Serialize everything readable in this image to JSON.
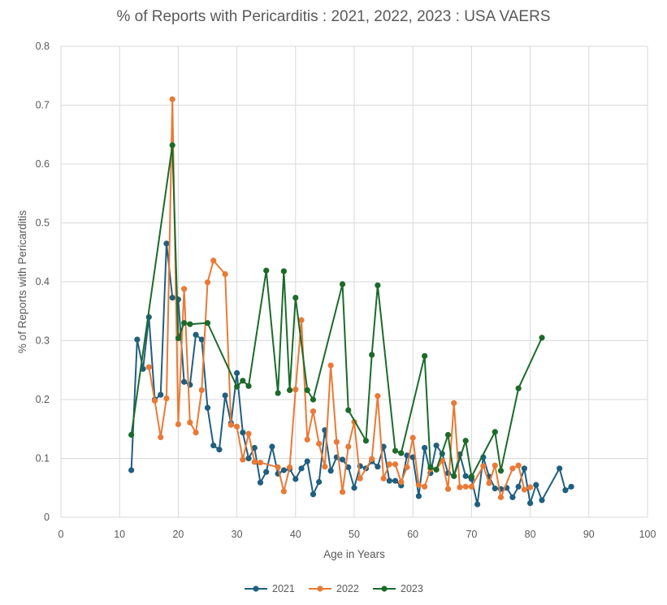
{
  "chart_data": {
    "type": "line",
    "title": "% of Reports with Pericarditis : 2021, 2022, 2023 : USA VAERS",
    "xlabel": "Age in Years",
    "ylabel": "% of Reports with Pericarditis",
    "xlim": [
      0,
      100
    ],
    "ylim": [
      0,
      0.8
    ],
    "x_ticks": [
      "0",
      "10",
      "20",
      "30",
      "40",
      "50",
      "60",
      "70",
      "80",
      "90",
      "100"
    ],
    "y_ticks": [
      "0",
      "0.1",
      "0.2",
      "0.3",
      "0.4",
      "0.5",
      "0.6",
      "0.7",
      "0.8"
    ],
    "grid": true,
    "legend_position": "bottom",
    "series": [
      {
        "name": "2021",
        "color": "#1f5f7f",
        "points": [
          [
            12,
            0.08
          ],
          [
            13,
            0.302
          ],
          [
            14,
            0.252
          ],
          [
            15,
            0.34
          ],
          [
            16,
            0.2
          ],
          [
            17,
            0.208
          ],
          [
            18,
            0.465
          ],
          [
            19,
            0.373
          ],
          [
            20,
            0.37
          ],
          [
            21,
            0.23
          ],
          [
            22,
            0.225
          ],
          [
            23,
            0.31
          ],
          [
            24,
            0.302
          ],
          [
            25,
            0.186
          ],
          [
            26,
            0.122
          ],
          [
            27,
            0.115
          ],
          [
            28,
            0.207
          ],
          [
            29,
            0.16
          ],
          [
            30,
            0.245
          ],
          [
            31,
            0.144
          ],
          [
            32,
            0.1
          ],
          [
            33,
            0.118
          ],
          [
            34,
            0.059
          ],
          [
            35,
            0.077
          ],
          [
            36,
            0.12
          ],
          [
            37,
            0.074
          ],
          [
            38,
            0.08
          ],
          [
            39,
            0.082
          ],
          [
            40,
            0.065
          ],
          [
            41,
            0.083
          ],
          [
            42,
            0.095
          ],
          [
            43,
            0.039
          ],
          [
            44,
            0.06
          ],
          [
            45,
            0.148
          ],
          [
            46,
            0.079
          ],
          [
            47,
            0.102
          ],
          [
            48,
            0.098
          ],
          [
            49,
            0.085
          ],
          [
            50,
            0.05
          ],
          [
            51,
            0.087
          ],
          [
            52,
            0.083
          ],
          [
            53,
            0.095
          ],
          [
            54,
            0.086
          ],
          [
            55,
            0.12
          ],
          [
            56,
            0.062
          ],
          [
            57,
            0.062
          ],
          [
            58,
            0.054
          ],
          [
            59,
            0.105
          ],
          [
            60,
            0.102
          ],
          [
            61,
            0.036
          ],
          [
            62,
            0.118
          ],
          [
            63,
            0.075
          ],
          [
            64,
            0.122
          ],
          [
            65,
            0.108
          ],
          [
            66,
            0.075
          ],
          [
            67,
            0.07
          ],
          [
            68,
            0.107
          ],
          [
            69,
            0.07
          ],
          [
            70,
            0.065
          ],
          [
            71,
            0.022
          ],
          [
            72,
            0.102
          ],
          [
            73,
            0.069
          ],
          [
            74,
            0.049
          ],
          [
            75,
            0.048
          ],
          [
            76,
            0.05
          ],
          [
            77,
            0.034
          ],
          [
            78,
            0.052
          ],
          [
            79,
            0.083
          ],
          [
            80,
            0.024
          ],
          [
            81,
            0.055
          ],
          [
            82,
            0.029
          ],
          [
            85,
            0.083
          ],
          [
            86,
            0.046
          ],
          [
            87,
            0.052
          ]
        ]
      },
      {
        "name": "2022",
        "color": "#e97a35",
        "points": [
          [
            15,
            0.255
          ],
          [
            16,
            0.198
          ],
          [
            17,
            0.136
          ],
          [
            18,
            0.202
          ],
          [
            19,
            0.71
          ],
          [
            20,
            0.158
          ],
          [
            21,
            0.388
          ],
          [
            22,
            0.161
          ],
          [
            23,
            0.144
          ],
          [
            24,
            0.216
          ],
          [
            25,
            0.399
          ],
          [
            26,
            0.436
          ],
          [
            28,
            0.413
          ],
          [
            29,
            0.157
          ],
          [
            30,
            0.154
          ],
          [
            31,
            0.098
          ],
          [
            32,
            0.142
          ],
          [
            33,
            0.094
          ],
          [
            34,
            0.093
          ],
          [
            37,
            0.085
          ],
          [
            38,
            0.044
          ],
          [
            39,
            0.085
          ],
          [
            40,
            0.217
          ],
          [
            41,
            0.335
          ],
          [
            42,
            0.132
          ],
          [
            43,
            0.18
          ],
          [
            44,
            0.125
          ],
          [
            45,
            0.086
          ],
          [
            46,
            0.258
          ],
          [
            47,
            0.128
          ],
          [
            48,
            0.043
          ],
          [
            49,
            0.12
          ],
          [
            50,
            0.162
          ],
          [
            51,
            0.066
          ],
          [
            53,
            0.099
          ],
          [
            54,
            0.206
          ],
          [
            55,
            0.066
          ],
          [
            56,
            0.09
          ],
          [
            57,
            0.09
          ],
          [
            58,
            0.06
          ],
          [
            59,
            0.085
          ],
          [
            60,
            0.135
          ],
          [
            61,
            0.055
          ],
          [
            62,
            0.052
          ],
          [
            63,
            0.082
          ],
          [
            64,
            0.081
          ],
          [
            65,
            0.096
          ],
          [
            66,
            0.048
          ],
          [
            67,
            0.194
          ],
          [
            68,
            0.051
          ],
          [
            69,
            0.052
          ],
          [
            70,
            0.052
          ],
          [
            72,
            0.087
          ],
          [
            73,
            0.058
          ],
          [
            74,
            0.088
          ],
          [
            75,
            0.034
          ],
          [
            77,
            0.083
          ],
          [
            78,
            0.088
          ],
          [
            79,
            0.047
          ],
          [
            80,
            0.051
          ]
        ]
      },
      {
        "name": "2023",
        "color": "#1b6b2a",
        "points": [
          [
            12,
            0.14
          ],
          [
            19,
            0.632
          ],
          [
            20,
            0.304
          ],
          [
            21,
            0.33
          ],
          [
            22,
            0.328
          ],
          [
            25,
            0.33
          ],
          [
            30,
            0.222
          ],
          [
            31,
            0.232
          ],
          [
            32,
            0.223
          ],
          [
            35,
            0.419
          ],
          [
            37,
            0.211
          ],
          [
            38,
            0.418
          ],
          [
            39,
            0.216
          ],
          [
            40,
            0.373
          ],
          [
            42,
            0.216
          ],
          [
            43,
            0.2
          ],
          [
            48,
            0.396
          ],
          [
            49,
            0.182
          ],
          [
            52,
            0.13
          ],
          [
            53,
            0.276
          ],
          [
            54,
            0.394
          ],
          [
            57,
            0.113
          ],
          [
            58,
            0.109
          ],
          [
            62,
            0.274
          ],
          [
            63,
            0.085
          ],
          [
            64,
            0.081
          ],
          [
            66,
            0.14
          ],
          [
            67,
            0.07
          ],
          [
            69,
            0.13
          ],
          [
            70,
            0.069
          ],
          [
            74,
            0.145
          ],
          [
            75,
            0.079
          ],
          [
            78,
            0.219
          ],
          [
            82,
            0.305
          ]
        ]
      }
    ]
  }
}
